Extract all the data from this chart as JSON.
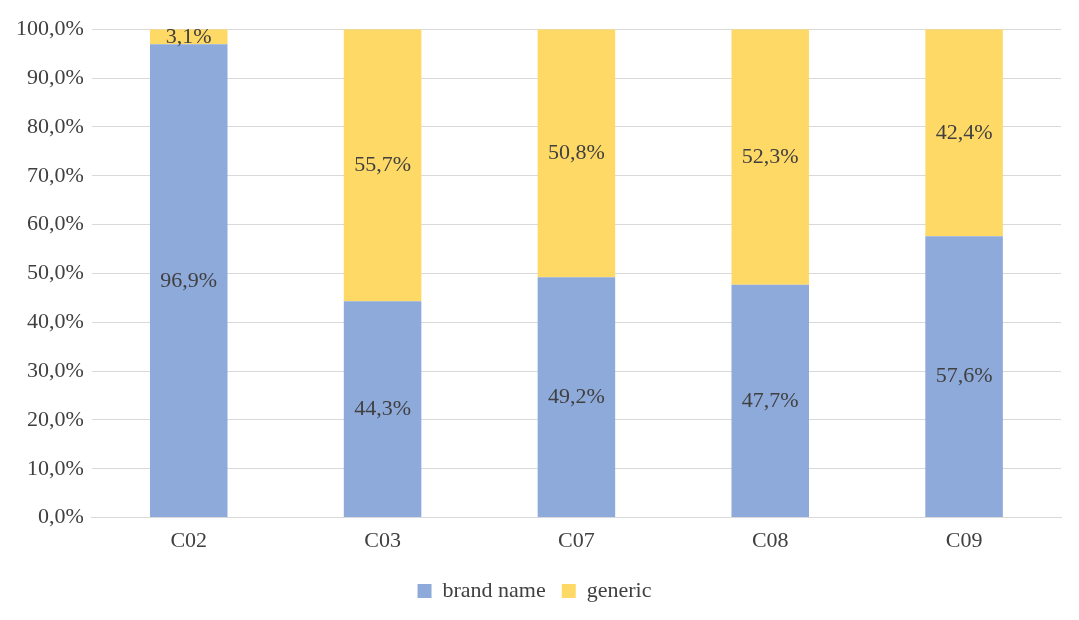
{
  "chart_data": {
    "type": "bar",
    "stacked": true,
    "categories": [
      "C02",
      "C03",
      "C07",
      "C08",
      "C09"
    ],
    "series": [
      {
        "name": "brand name",
        "color": "#8eaadb",
        "values": [
          96.9,
          44.3,
          49.2,
          47.7,
          57.6
        ],
        "value_labels": [
          "96,9%",
          "44,3%",
          "49,2%",
          "47,7%",
          "57,6%"
        ]
      },
      {
        "name": "generic",
        "color": "#ffd966",
        "values": [
          3.1,
          55.7,
          50.8,
          52.3,
          42.4
        ],
        "value_labels": [
          "3,1%",
          "55,7%",
          "50,8%",
          "52,3%",
          "42,4%"
        ]
      }
    ],
    "ylim": [
      0,
      100
    ],
    "yticks": [
      {
        "value": 0,
        "label": "0,0%"
      },
      {
        "value": 10,
        "label": "10,0%"
      },
      {
        "value": 20,
        "label": "20,0%"
      },
      {
        "value": 30,
        "label": "30,0%"
      },
      {
        "value": 40,
        "label": "40,0%"
      },
      {
        "value": 50,
        "label": "50,0%"
      },
      {
        "value": 60,
        "label": "60,0%"
      },
      {
        "value": 70,
        "label": "70,0%"
      },
      {
        "value": 80,
        "label": "80,0%"
      },
      {
        "value": 90,
        "label": "90,0%"
      },
      {
        "value": 100,
        "label": "100,0%"
      }
    ],
    "grid": "y",
    "legend": "bottom"
  }
}
